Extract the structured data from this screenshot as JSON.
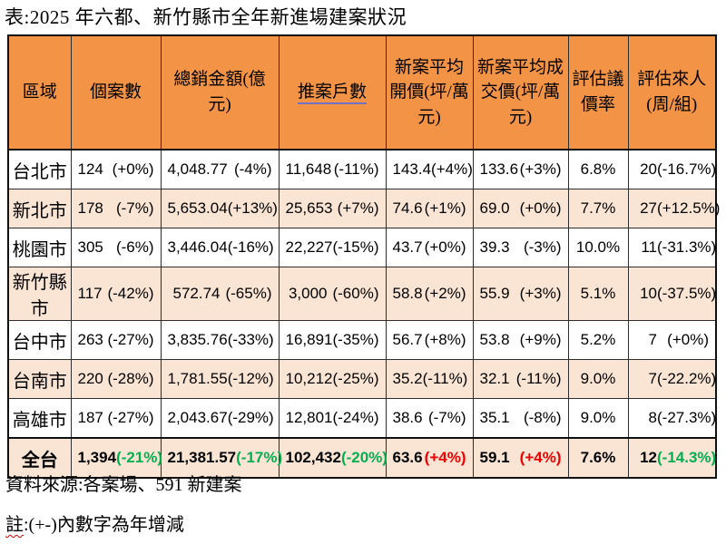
{
  "title": "表:2025 年六都、新竹縣市全年新進場建案狀況",
  "chart_data": {
    "type": "table",
    "columns": [
      "區域",
      "個案數",
      "總銷金額(億元)",
      "推案戶數",
      "新案平均開價(坪/萬元)",
      "新案平均成交價(坪/萬元)",
      "評估議價率",
      "評估來人(周/組)"
    ],
    "underlined_column": "推案戶數",
    "rows": [
      {
        "region": "台北市",
        "zebra": false,
        "total": false,
        "cells": [
          {
            "num": "124",
            "pct": "(+0%)"
          },
          {
            "num": "4,048.77",
            "pct": "(-4%)"
          },
          {
            "num": "11,648",
            "pct": "(-11%)"
          },
          {
            "num": "143.4",
            "pct": "(+4%)"
          },
          {
            "num": "133.6",
            "pct": "(+3%)"
          },
          {
            "num": "6.8%",
            "pct": ""
          },
          {
            "num": "20",
            "pct": "(-16.7%)"
          }
        ]
      },
      {
        "region": "新北市",
        "zebra": true,
        "total": false,
        "cells": [
          {
            "num": "178",
            "pct": "(-7%)"
          },
          {
            "num": "5,653.04",
            "pct": "(+13%)"
          },
          {
            "num": "25,653",
            "pct": "(+7%)"
          },
          {
            "num": "74.6",
            "pct": "(+1%)"
          },
          {
            "num": "69.0",
            "pct": "(+0%)"
          },
          {
            "num": "7.7%",
            "pct": ""
          },
          {
            "num": "27",
            "pct": "(+12.5%)"
          }
        ]
      },
      {
        "region": "桃園市",
        "zebra": false,
        "total": false,
        "cells": [
          {
            "num": "305",
            "pct": "(-6%)"
          },
          {
            "num": "3,446.04",
            "pct": "(-16%)"
          },
          {
            "num": "22,227",
            "pct": "(-15%)"
          },
          {
            "num": "43.7",
            "pct": "(+0%)"
          },
          {
            "num": "39.3",
            "pct": "(-3%)"
          },
          {
            "num": "10.0%",
            "pct": ""
          },
          {
            "num": "11",
            "pct": "(-31.3%)"
          }
        ]
      },
      {
        "region": "新竹縣市",
        "zebra": true,
        "total": false,
        "cells": [
          {
            "num": "117",
            "pct": "(-42%)"
          },
          {
            "num": "572.74",
            "pct": "(-65%)"
          },
          {
            "num": "3,000",
            "pct": "(-60%)"
          },
          {
            "num": "58.8",
            "pct": "(+2%)"
          },
          {
            "num": "55.9",
            "pct": "(+3%)"
          },
          {
            "num": "5.1%",
            "pct": ""
          },
          {
            "num": "10",
            "pct": "(-37.5%)"
          }
        ]
      },
      {
        "region": "台中市",
        "zebra": false,
        "total": false,
        "cells": [
          {
            "num": "263",
            "pct": "(-27%)"
          },
          {
            "num": "3,835.76",
            "pct": "(-33%)"
          },
          {
            "num": "16,891",
            "pct": "(-35%)"
          },
          {
            "num": "56.7",
            "pct": "(+8%)"
          },
          {
            "num": "53.8",
            "pct": "(+9%)"
          },
          {
            "num": "5.2%",
            "pct": ""
          },
          {
            "num": "7",
            "pct": "(+0%)"
          }
        ]
      },
      {
        "region": "台南市",
        "zebra": true,
        "total": false,
        "cells": [
          {
            "num": "220",
            "pct": "(-28%)"
          },
          {
            "num": "1,781.55",
            "pct": "(-12%)"
          },
          {
            "num": "10,212",
            "pct": "(-25%)"
          },
          {
            "num": "35.2",
            "pct": "(-11%)"
          },
          {
            "num": "32.1",
            "pct": "(-11%)"
          },
          {
            "num": "9.0%",
            "pct": ""
          },
          {
            "num": "7",
            "pct": "(-22.2%)"
          }
        ]
      },
      {
        "region": "高雄市",
        "zebra": false,
        "total": false,
        "cells": [
          {
            "num": "187",
            "pct": "(-27%)"
          },
          {
            "num": "2,043.67",
            "pct": "(-29%)"
          },
          {
            "num": "12,801",
            "pct": "(-24%)"
          },
          {
            "num": "38.6",
            "pct": "(-7%)"
          },
          {
            "num": "35.1",
            "pct": "(-8%)"
          },
          {
            "num": "9.0%",
            "pct": ""
          },
          {
            "num": "8",
            "pct": "(-27.3%)"
          }
        ]
      },
      {
        "region": "全台",
        "zebra": true,
        "total": true,
        "cells": [
          {
            "num": "1,394",
            "pct": "(-21%)",
            "color": "green"
          },
          {
            "num": "21,381.57",
            "pct": "(-17%)",
            "color": "green"
          },
          {
            "num": "102,432",
            "pct": "(-20%)",
            "color": "green"
          },
          {
            "num": "63.6",
            "pct": "(+4%)",
            "color": "red"
          },
          {
            "num": "59.1",
            "pct": "(+4%)",
            "color": "red"
          },
          {
            "num": "7.6%",
            "pct": ""
          },
          {
            "num": "12",
            "pct": "(-14.3%)",
            "color": "green"
          }
        ]
      }
    ]
  },
  "footer": {
    "source": "資料來源:各案場、591 新建案",
    "note_head": "註",
    "note_rest": ":(+-)內數字為年增減"
  },
  "colors": {
    "header_bg": "#F29346",
    "zebra_bg": "#FAE4D3",
    "increase_red": "#EE0000",
    "decrease_green": "#00B050",
    "header_underline": "#7272C8"
  }
}
